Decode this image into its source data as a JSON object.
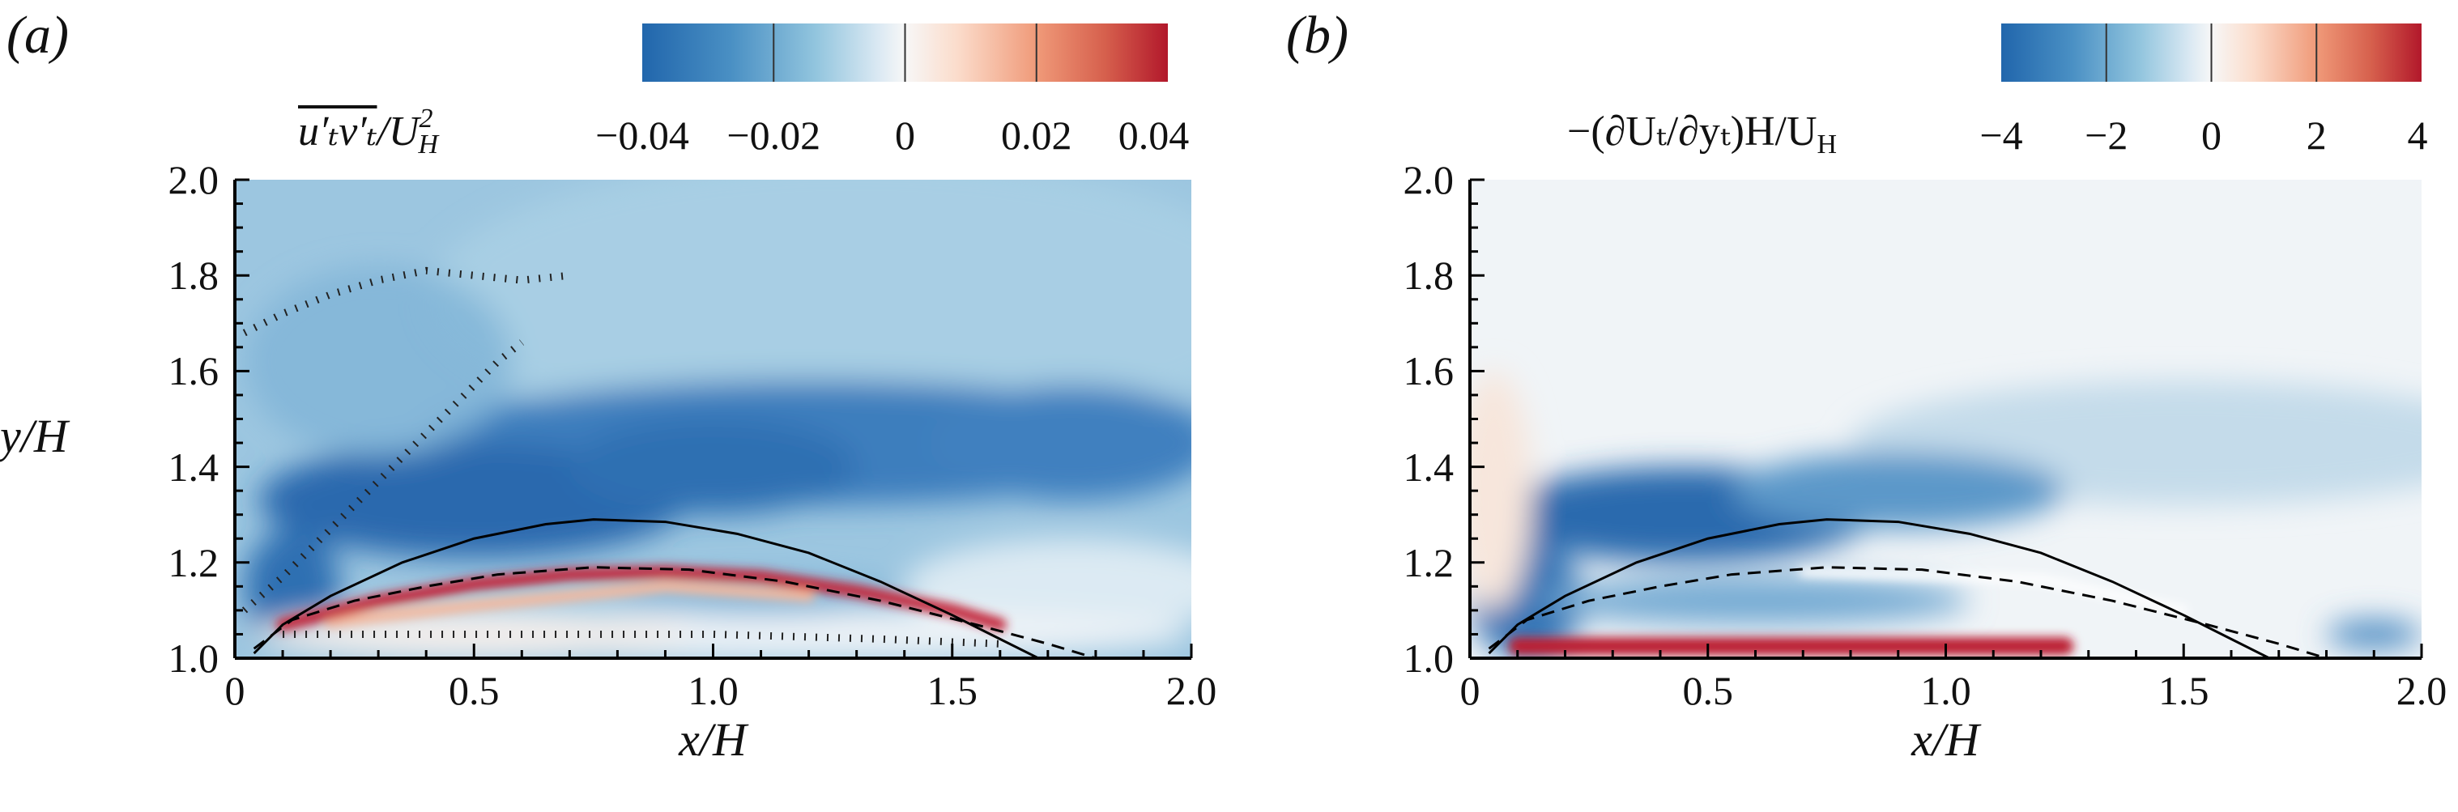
{
  "chart_data": [
    {
      "panel_label": "(a)",
      "type": "heatmap",
      "xlabel": {
        "main": "x/H"
      },
      "ylabel": {
        "main": "y/H"
      },
      "xlim": [
        0,
        2.0
      ],
      "ylim": [
        1.0,
        2.0
      ],
      "xticks": [
        "0",
        "0.5",
        "1.0",
        "1.5",
        "2.0"
      ],
      "xtick_values": [
        0,
        0.5,
        1.0,
        1.5,
        2.0
      ],
      "yticks": [
        "1.0",
        "1.2",
        "1.4",
        "1.6",
        "1.8",
        "2.0"
      ],
      "ytick_values": [
        1.0,
        1.2,
        1.4,
        1.6,
        1.8,
        2.0
      ],
      "colorbar": {
        "label": {
          "over": "u′ₜv′ₜ",
          "rest": "/U",
          "sup": "2",
          "sub": "H"
        },
        "range": [
          -0.04,
          0.04
        ],
        "ticks": [
          "−0.04",
          "−0.02",
          "0",
          "0.02",
          "0.04"
        ],
        "tick_values": [
          -0.04,
          -0.02,
          0,
          0.02,
          0.04
        ],
        "colormap": [
          "#2166ac",
          "#67a9cf",
          "#d1e5f0",
          "#f7f7f7",
          "#fddbc7",
          "#ef8a62",
          "#b2182b"
        ],
        "placement": "top-right"
      },
      "contours": {
        "solid": [
          [
            0.04,
            1.01
          ],
          [
            0.1,
            1.07
          ],
          [
            0.2,
            1.13
          ],
          [
            0.35,
            1.2
          ],
          [
            0.5,
            1.25
          ],
          [
            0.65,
            1.28
          ],
          [
            0.75,
            1.29
          ],
          [
            0.9,
            1.285
          ],
          [
            1.05,
            1.26
          ],
          [
            1.2,
            1.22
          ],
          [
            1.35,
            1.16
          ],
          [
            1.5,
            1.09
          ],
          [
            1.6,
            1.04
          ],
          [
            1.68,
            1.0
          ]
        ],
        "dashed": [
          [
            0.04,
            1.02
          ],
          [
            0.12,
            1.08
          ],
          [
            0.25,
            1.12
          ],
          [
            0.4,
            1.15
          ],
          [
            0.55,
            1.175
          ],
          [
            0.75,
            1.19
          ],
          [
            0.95,
            1.185
          ],
          [
            1.15,
            1.16
          ],
          [
            1.35,
            1.12
          ],
          [
            1.55,
            1.07
          ],
          [
            1.7,
            1.03
          ],
          [
            1.8,
            1.0
          ]
        ],
        "dotted": [
          [
            [
              0.1,
              1.05
            ],
            [
              0.5,
              1.05
            ],
            [
              1.0,
              1.05
            ],
            [
              1.35,
              1.04
            ],
            [
              1.6,
              1.03
            ]
          ],
          [
            [
              0.02,
              1.1
            ],
            [
              0.1,
              1.17
            ],
            [
              0.2,
              1.27
            ],
            [
              0.3,
              1.37
            ],
            [
              0.4,
              1.47
            ],
            [
              0.48,
              1.55
            ],
            [
              0.55,
              1.62
            ],
            [
              0.6,
              1.66
            ]
          ],
          [
            [
              0.02,
              1.68
            ],
            [
              0.1,
              1.72
            ],
            [
              0.2,
              1.76
            ],
            [
              0.3,
              1.79
            ],
            [
              0.4,
              1.81
            ],
            [
              0.5,
              1.8
            ],
            [
              0.6,
              1.79
            ],
            [
              0.7,
              1.8
            ]
          ]
        ]
      }
    },
    {
      "panel_label": "(b)",
      "type": "heatmap",
      "xlabel": {
        "main": "x/H"
      },
      "xlim": [
        0,
        2.0
      ],
      "ylim": [
        1.0,
        2.0
      ],
      "xticks": [
        "0",
        "0.5",
        "1.0",
        "1.5",
        "2.0"
      ],
      "xtick_values": [
        0,
        0.5,
        1.0,
        1.5,
        2.0
      ],
      "yticks": [
        "1.0",
        "1.2",
        "1.4",
        "1.6",
        "1.8",
        "2.0"
      ],
      "ytick_values": [
        1.0,
        1.2,
        1.4,
        1.6,
        1.8,
        2.0
      ],
      "colorbar": {
        "label": {
          "rest": "−(∂Uₜ/∂yₜ)H/U",
          "sub": "H"
        },
        "range": [
          -4,
          4
        ],
        "ticks": [
          "−4",
          "−2",
          "0",
          "2",
          "4"
        ],
        "tick_values": [
          -4,
          -2,
          0,
          2,
          4
        ],
        "colormap": [
          "#2166ac",
          "#67a9cf",
          "#d1e5f0",
          "#f7f7f7",
          "#fddbc7",
          "#ef8a62",
          "#b2182b"
        ],
        "placement": "top-right"
      },
      "contours": {
        "solid": [
          [
            0.04,
            1.01
          ],
          [
            0.1,
            1.07
          ],
          [
            0.2,
            1.13
          ],
          [
            0.35,
            1.2
          ],
          [
            0.5,
            1.25
          ],
          [
            0.65,
            1.28
          ],
          [
            0.75,
            1.29
          ],
          [
            0.9,
            1.285
          ],
          [
            1.05,
            1.26
          ],
          [
            1.2,
            1.22
          ],
          [
            1.35,
            1.16
          ],
          [
            1.5,
            1.09
          ],
          [
            1.6,
            1.04
          ],
          [
            1.68,
            1.0
          ]
        ],
        "dashed": [
          [
            0.04,
            1.02
          ],
          [
            0.12,
            1.08
          ],
          [
            0.25,
            1.12
          ],
          [
            0.4,
            1.15
          ],
          [
            0.55,
            1.175
          ],
          [
            0.75,
            1.19
          ],
          [
            0.95,
            1.185
          ],
          [
            1.15,
            1.16
          ],
          [
            1.35,
            1.12
          ],
          [
            1.55,
            1.07
          ],
          [
            1.7,
            1.03
          ],
          [
            1.8,
            1.0
          ]
        ],
        "dotted": []
      }
    }
  ]
}
